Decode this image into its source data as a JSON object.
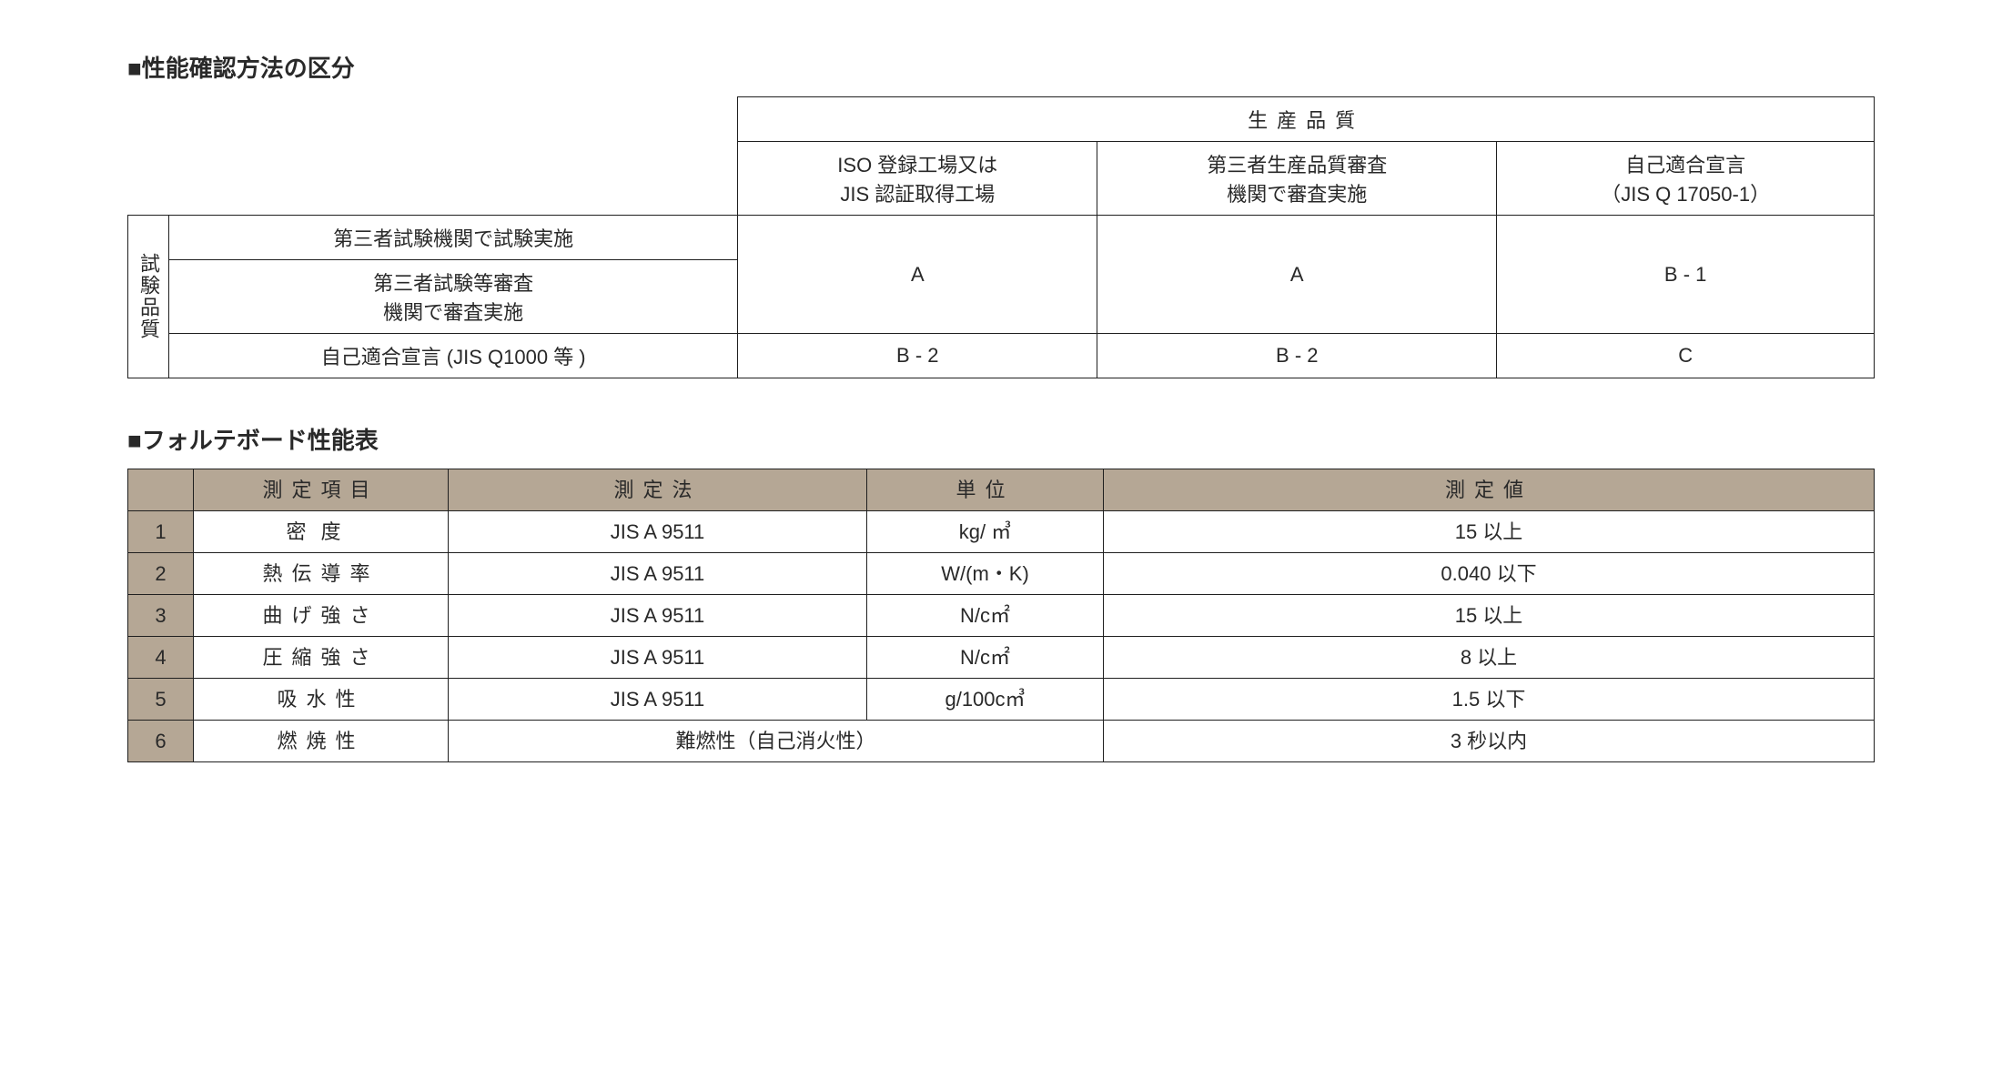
{
  "section1": {
    "heading": "■性能確認方法の区分",
    "production_quality_header": "生産品質",
    "col_headers": [
      "ISO 登録工場又は\nJIS 認証取得工場",
      "第三者生産品質審査\n機関で審査実施",
      "自己適合宣言\n（JIS Q 17050-1）"
    ],
    "row_group_label": "試験品質",
    "row1_label": "第三者試験機関で試験実施",
    "row2_label": "第三者試験等審査\n機関で審査実施",
    "row3_label": "自己適合宣言 (JIS Q1000 等 )",
    "merged_a1": "A",
    "merged_a2": "A",
    "merged_b1": "B - 1",
    "r3c1": "B - 2",
    "r3c2": "B - 2",
    "r3c3": "C"
  },
  "section2": {
    "heading": "■フォルテボード性能表",
    "headers": {
      "blank": "",
      "item": "測定項目",
      "method": "測定法",
      "unit": "単位",
      "value": "測定値"
    },
    "rows": [
      {
        "n": "1",
        "item": "密度",
        "method": "JIS A 9511",
        "unit": "kg/ ㎥",
        "value": "15 以上"
      },
      {
        "n": "2",
        "item": "熱伝導率",
        "method": "JIS A 9511",
        "unit": "W/(m・K)",
        "value": "0.040 以下"
      },
      {
        "n": "3",
        "item": "曲げ強さ",
        "method": "JIS A 9511",
        "unit": "N/c㎡",
        "value": "15 以上"
      },
      {
        "n": "4",
        "item": "圧縮強さ",
        "method": "JIS A 9511",
        "unit": "N/c㎡",
        "value": "8 以上"
      },
      {
        "n": "5",
        "item": "吸水性",
        "method": "JIS A 9511",
        "unit": "g/100c㎥",
        "value": "1.5 以下"
      },
      {
        "n": "6",
        "item": "燃焼性",
        "method_unit": "難燃性（自己消火性）",
        "value": "3 秒以内"
      }
    ]
  }
}
